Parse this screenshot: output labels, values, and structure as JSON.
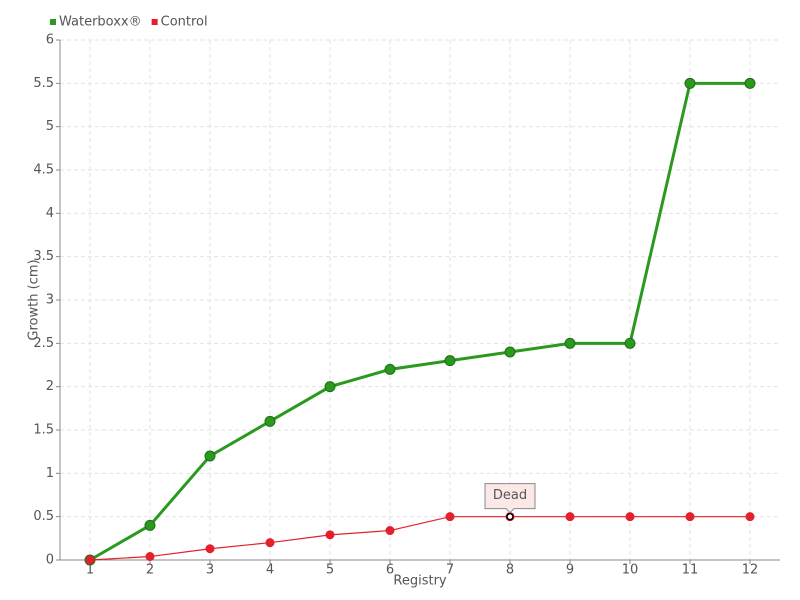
{
  "chart_data": {
    "type": "line",
    "x_label": "Registry",
    "y_label": "Growth (cm)",
    "categories": [
      "1",
      "2",
      "3",
      "4",
      "5",
      "6",
      "7",
      "8",
      "9",
      "10",
      "11",
      "12"
    ],
    "series": [
      {
        "name": "Waterboxx®",
        "color": "#2a9a1e",
        "values": [
          0,
          0.4,
          1.2,
          1.6,
          2.0,
          2.2,
          2.3,
          2.4,
          2.5,
          2.5,
          5.5,
          5.5
        ]
      },
      {
        "name": "Control",
        "color": "#e3202c",
        "values": [
          0,
          0.04,
          0.13,
          0.2,
          0.29,
          0.34,
          0.5,
          0.5,
          0.5,
          0.5,
          0.5,
          0.5
        ]
      }
    ],
    "annotations": [
      {
        "text": "Dead",
        "x": "8",
        "y": 0.5
      }
    ],
    "ylim": [
      0,
      6
    ],
    "yticks": [
      0,
      0.5,
      1,
      1.5,
      2,
      2.5,
      3,
      3.5,
      4,
      4.5,
      5,
      5.5,
      6
    ],
    "grid": true,
    "legend": "top-left"
  }
}
